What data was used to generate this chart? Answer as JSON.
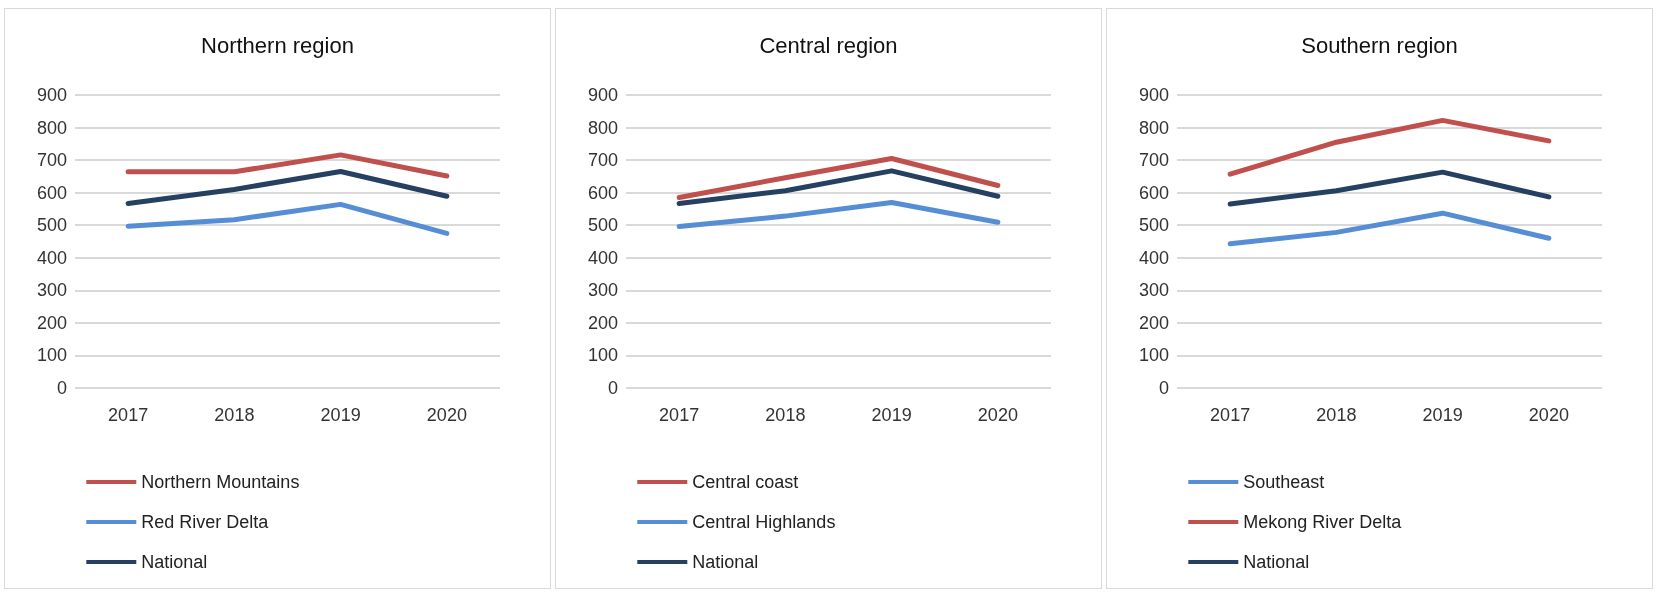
{
  "chart_data": [
    {
      "type": "line",
      "title": "Northern region",
      "categories": [
        "2017",
        "2018",
        "2019",
        "2020"
      ],
      "ylim": [
        0,
        900
      ],
      "yticks": [
        0,
        100,
        200,
        300,
        400,
        500,
        600,
        700,
        800,
        900
      ],
      "grid": "y",
      "legend": "bottom",
      "marker": "none",
      "line_style": "solid",
      "series": [
        {
          "name": "Northern Mountains",
          "color": "#c0504d",
          "values": [
            664,
            664,
            716,
            651
          ]
        },
        {
          "name": "Red River Delta",
          "color": "#558ed5",
          "values": [
            497,
            517,
            564,
            475
          ]
        },
        {
          "name": "National",
          "color": "#254061",
          "values": [
            567,
            610,
            665,
            589
          ]
        }
      ]
    },
    {
      "type": "line",
      "title": "Central region",
      "categories": [
        "2017",
        "2018",
        "2019",
        "2020"
      ],
      "ylim": [
        0,
        900
      ],
      "yticks": [
        0,
        100,
        200,
        300,
        400,
        500,
        600,
        700,
        800,
        900
      ],
      "grid": "y",
      "legend": "bottom",
      "marker": "none",
      "line_style": "solid",
      "series": [
        {
          "name": "Central coast",
          "color": "#c0504d",
          "values": [
            585,
            646,
            705,
            622
          ]
        },
        {
          "name": "Central Highlands",
          "color": "#558ed5",
          "values": [
            496,
            528,
            570,
            509
          ]
        },
        {
          "name": "National",
          "color": "#254061",
          "values": [
            567,
            606,
            667,
            589
          ]
        }
      ]
    },
    {
      "type": "line",
      "title": "Southern region",
      "categories": [
        "2017",
        "2018",
        "2019",
        "2020"
      ],
      "ylim": [
        0,
        900
      ],
      "yticks": [
        0,
        100,
        200,
        300,
        400,
        500,
        600,
        700,
        800,
        900
      ],
      "grid": "y",
      "legend": "bottom",
      "marker": "none",
      "line_style": "solid",
      "series": [
        {
          "name": "Southeast",
          "color": "#558ed5",
          "values": [
            443,
            478,
            537,
            460
          ]
        },
        {
          "name": "Mekong River Delta",
          "color": "#c0504d",
          "values": [
            657,
            755,
            822,
            759
          ]
        },
        {
          "name": "National",
          "color": "#254061",
          "values": [
            565,
            606,
            663,
            587
          ]
        }
      ]
    }
  ]
}
